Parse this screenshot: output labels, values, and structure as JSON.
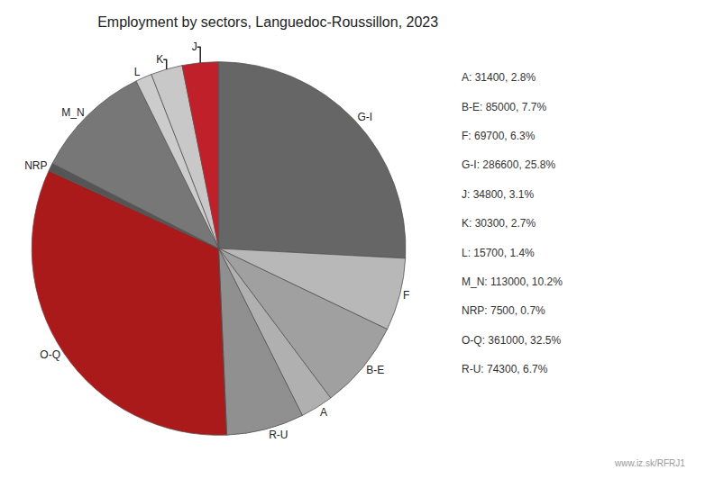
{
  "chart_data": {
    "type": "pie",
    "title": "Employment by sectors, Languedoc-Roussillon, 2023",
    "categories": [
      "G-I",
      "F",
      "B-E",
      "A",
      "R-U",
      "O-Q",
      "NRP",
      "M_N",
      "L",
      "K",
      "J"
    ],
    "values": [
      286600,
      69700,
      85000,
      31400,
      74300,
      361000,
      7500,
      113000,
      15700,
      30300,
      34800
    ],
    "colors": [
      "#666666",
      "#b8b8b8",
      "#a0a0a0",
      "#b0b0b0",
      "#909090",
      "#aa1a1a",
      "#555555",
      "#777777",
      "#cccccc",
      "#c8c8c8",
      "#c0202a"
    ],
    "annotations": [
      "A: 31400, 2.8%",
      "B-E: 85000, 7.7%",
      "F: 69700, 6.3%",
      "G-I: 286600, 25.8%",
      "J: 34800, 3.1%",
      "K: 30300, 2.7%",
      "L: 15700, 1.4%",
      "M_N: 113000, 10.2%",
      "NRP: 7500, 0.7%",
      "O-Q: 361000, 32.5%",
      "R-U: 74300, 6.7%",
      "www.iz.sk/RFRJ1"
    ]
  }
}
